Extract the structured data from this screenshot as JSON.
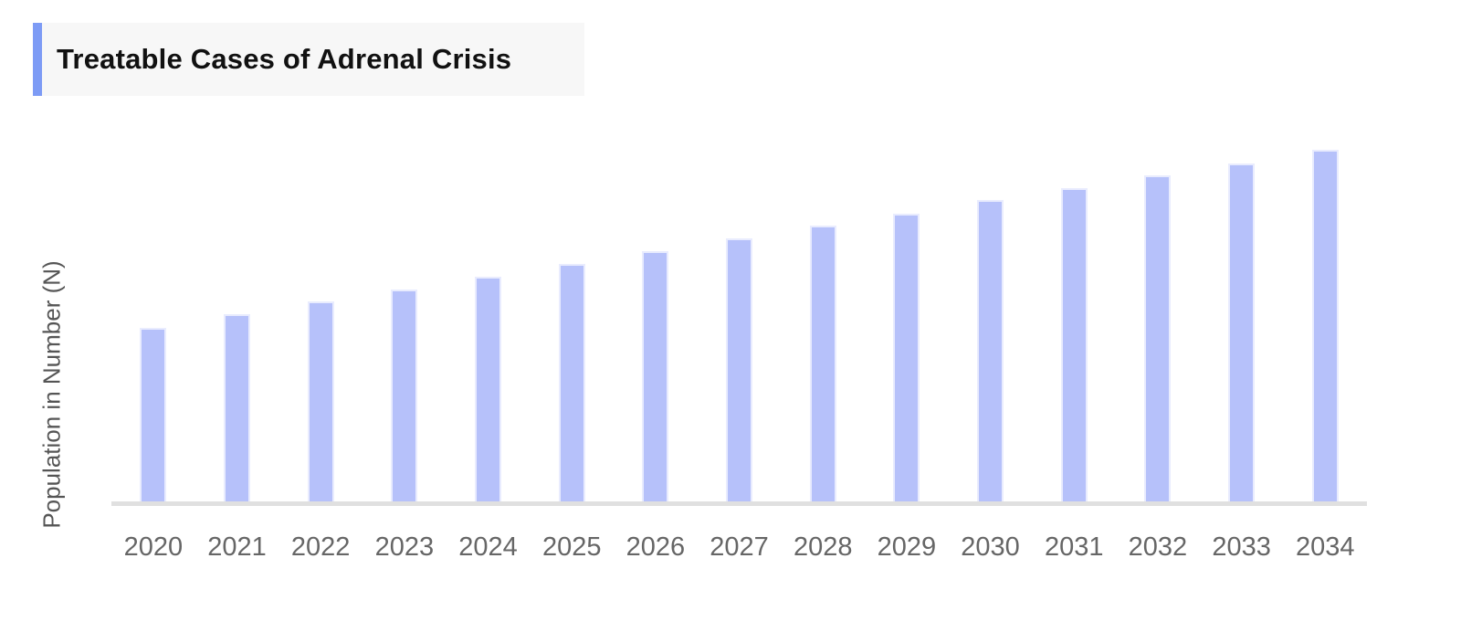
{
  "header": {
    "title": "Treatable Cases of Adrenal Crisis",
    "accent_color": "#7d9bf5",
    "background_color": "#f7f7f7",
    "text_color": "#111111"
  },
  "chart_data": {
    "type": "bar",
    "title": "Treatable Cases of Adrenal Crisis",
    "categories": [
      "2020",
      "2021",
      "2022",
      "2023",
      "2024",
      "2025",
      "2026",
      "2027",
      "2028",
      "2029",
      "2030",
      "2031",
      "2032",
      "2033",
      "2034"
    ],
    "values_relative": [
      190,
      205,
      219,
      232,
      246,
      260,
      274,
      288,
      302,
      315,
      330,
      343,
      357,
      370,
      385
    ],
    "xlabel": "",
    "ylabel": "Population in Number (N)",
    "y_axis_tick_labels": [],
    "grid": false,
    "legend_position": "none",
    "bar_color": "#b6c1fa",
    "bar_edge_color": "#e9ecfe",
    "axis_line_color": "#e0e0e0",
    "tick_label_color": "#666666",
    "ylabel_color": "#555555"
  }
}
